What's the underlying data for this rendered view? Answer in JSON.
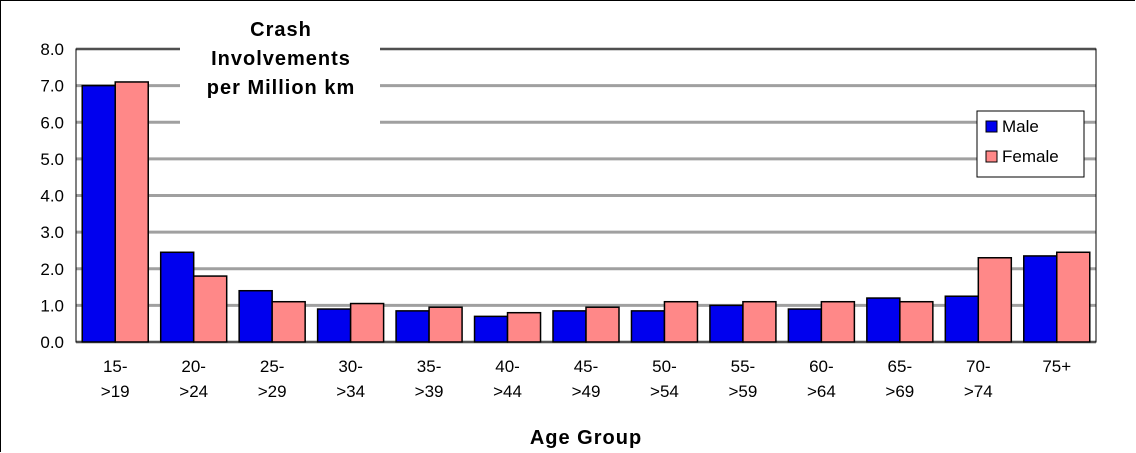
{
  "chart_data": {
    "type": "bar",
    "title": "",
    "ylabel_lines": [
      "Crash",
      "Involvements",
      "per Million km"
    ],
    "xlabel": "Age Group",
    "categories": [
      [
        "15-",
        ">19"
      ],
      [
        "20-",
        ">24"
      ],
      [
        "25-",
        ">29"
      ],
      [
        "30-",
        ">34"
      ],
      [
        "35-",
        ">39"
      ],
      [
        "40-",
        ">44"
      ],
      [
        "45-",
        ">49"
      ],
      [
        "50-",
        ">54"
      ],
      [
        "55-",
        ">59"
      ],
      [
        "60-",
        ">64"
      ],
      [
        "65-",
        ">69"
      ],
      [
        "70-",
        ">74"
      ],
      [
        "75+"
      ]
    ],
    "ylim": [
      0,
      8
    ],
    "yticks": [
      "0.0",
      "1.0",
      "2.0",
      "3.0",
      "4.0",
      "5.0",
      "6.0",
      "7.0",
      "8.0"
    ],
    "grid": true,
    "legend_position": "top-right",
    "series": [
      {
        "name": "Male",
        "color": "#0000ee",
        "values": [
          7.0,
          2.45,
          1.4,
          0.9,
          0.85,
          0.7,
          0.85,
          0.85,
          1.0,
          0.9,
          1.2,
          1.25,
          2.35
        ]
      },
      {
        "name": "Female",
        "color": "#ff8888",
        "values": [
          7.1,
          1.8,
          1.1,
          1.05,
          0.95,
          0.8,
          0.95,
          1.1,
          1.1,
          1.1,
          1.1,
          2.3,
          2.45
        ]
      }
    ]
  }
}
